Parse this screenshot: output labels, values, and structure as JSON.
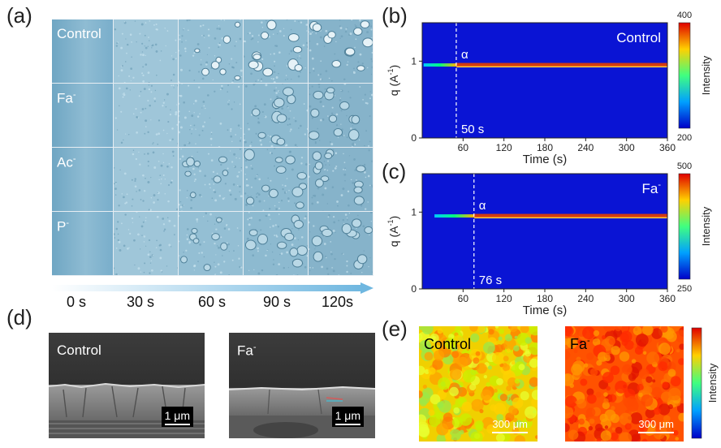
{
  "panels": {
    "a": "(a)",
    "b": "(b)",
    "c": "(c)",
    "d": "(d)",
    "e": "(e)"
  },
  "panel_a": {
    "rows": [
      {
        "label": "Control",
        "sup": ""
      },
      {
        "label": "Fa",
        "sup": "-"
      },
      {
        "label": "Ac",
        "sup": "-"
      },
      {
        "label": "P",
        "sup": "-"
      }
    ],
    "times": [
      "0 s",
      "30 s",
      "60 s",
      "90 s",
      "120s"
    ],
    "colors": {
      "base": "#8fbcd3",
      "dark": "#5f8fa9",
      "crystal": "#d9ecf3"
    }
  },
  "chart_data": [
    {
      "type": "heatmap",
      "panel": "b",
      "title": "Control",
      "xlabel": "Time (s)",
      "ylabel_main": "q (A",
      "ylabel_sup": "-1",
      "ylabel_end": ")",
      "x_ticks": [
        "60",
        "120",
        "180",
        "240",
        "300",
        "360"
      ],
      "x_tick_values": [
        60,
        120,
        180,
        240,
        300,
        360
      ],
      "xlim": [
        0,
        360
      ],
      "y_ticks": [
        "0",
        "1"
      ],
      "y_tick_values": [
        0,
        1
      ],
      "ylim": [
        0,
        1.5
      ],
      "peak_q": 0.95,
      "onset_time": 50,
      "onset_label": "50 s",
      "peak_label": "α",
      "colorbar": {
        "min": "200",
        "max": "400",
        "label": "Intensity"
      }
    },
    {
      "type": "heatmap",
      "panel": "c",
      "title": "Fa",
      "title_sup": "-",
      "xlabel": "Time (s)",
      "ylabel_main": "q (A",
      "ylabel_sup": "-1",
      "ylabel_end": ")",
      "x_ticks": [
        "60",
        "120",
        "180",
        "240",
        "300",
        "360"
      ],
      "x_tick_values": [
        60,
        120,
        180,
        240,
        300,
        360
      ],
      "xlim": [
        0,
        360
      ],
      "y_ticks": [
        "0",
        "1"
      ],
      "y_tick_values": [
        0,
        1
      ],
      "ylim": [
        0,
        1.5
      ],
      "peak_q": 0.95,
      "onset_time": 76,
      "onset_label": "76 s",
      "peak_label": "α",
      "colorbar": {
        "min": "250",
        "max": "500",
        "label": "Intensity"
      }
    }
  ],
  "panel_d": {
    "left": {
      "label": "Control",
      "sup": "",
      "scale": "1 μm"
    },
    "right": {
      "label": "Fa",
      "sup": "-",
      "scale": "1 μm"
    }
  },
  "panel_e": {
    "left": {
      "label": "Control",
      "sup": "",
      "scale": "300 μm"
    },
    "right": {
      "label": "Fa",
      "sup": "-",
      "scale": "300 μm"
    },
    "colorbar_label": "Intensity"
  }
}
